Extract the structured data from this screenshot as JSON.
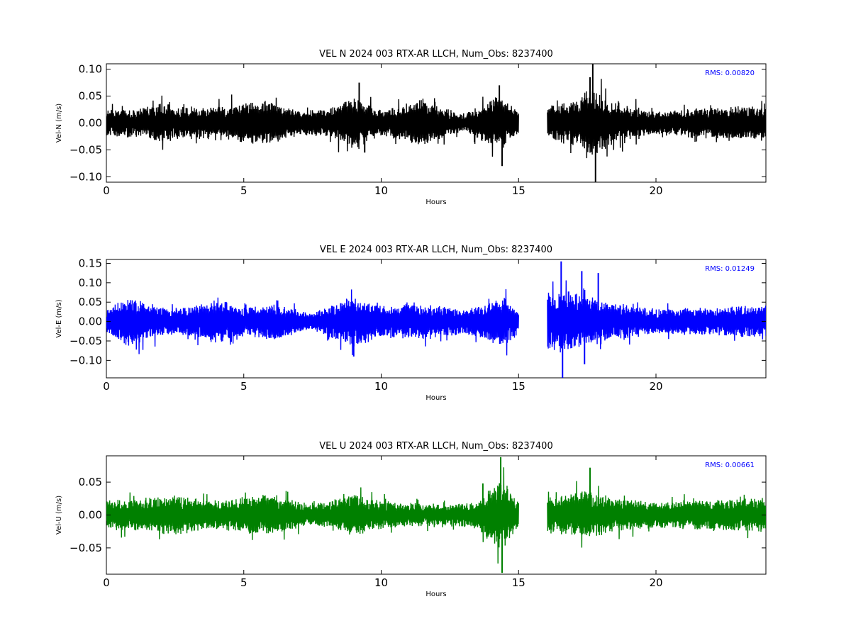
{
  "chart_data": [
    {
      "type": "line",
      "title": "VEL N 2024 003 RTX-AR  LLCH, Num_Obs: 8237400",
      "xlabel": "Hours",
      "ylabel": "Vel-N (m/s)",
      "xlim": [
        0,
        24
      ],
      "ylim": [
        -0.11,
        0.11
      ],
      "xticks": [
        0,
        5,
        10,
        15,
        20
      ],
      "xtick_labels": [
        "0",
        "5",
        "10",
        "15",
        "20"
      ],
      "yticks": [
        -0.1,
        -0.05,
        0.0,
        0.05,
        0.1
      ],
      "ytick_labels": [
        "−0.10",
        "−0.05",
        "0.00",
        "0.05",
        "0.10"
      ],
      "annotation": "RMS:  0.00820",
      "annotation_color": "#0000ff",
      "grid": false,
      "series": [
        {
          "color": "#000000",
          "segments": [
            [
              0,
              15.0
            ],
            [
              16.05,
              24
            ]
          ],
          "envelope_points": [
            {
              "x": 0,
              "y": 0.025
            },
            {
              "x": 1,
              "y": 0.025
            },
            {
              "x": 2,
              "y": 0.035
            },
            {
              "x": 3,
              "y": 0.028
            },
            {
              "x": 4,
              "y": 0.03
            },
            {
              "x": 5,
              "y": 0.035
            },
            {
              "x": 5.8,
              "y": 0.04
            },
            {
              "x": 7,
              "y": 0.022
            },
            {
              "x": 8,
              "y": 0.025
            },
            {
              "x": 9,
              "y": 0.045
            },
            {
              "x": 10,
              "y": 0.022
            },
            {
              "x": 11.5,
              "y": 0.04
            },
            {
              "x": 13,
              "y": 0.015
            },
            {
              "x": 14.3,
              "y": 0.05
            },
            {
              "x": 15,
              "y": 0.02
            },
            {
              "x": 16.05,
              "y": 0.03
            },
            {
              "x": 17,
              "y": 0.04
            },
            {
              "x": 17.6,
              "y": 0.065
            },
            {
              "x": 18.5,
              "y": 0.035
            },
            {
              "x": 20,
              "y": 0.02
            },
            {
              "x": 22,
              "y": 0.028
            },
            {
              "x": 24,
              "y": 0.03
            }
          ],
          "spikes": [
            {
              "x": 9.2,
              "y": 0.075
            },
            {
              "x": 9.4,
              "y": -0.055
            },
            {
              "x": 14.4,
              "y": -0.08
            },
            {
              "x": 14.3,
              "y": 0.07
            },
            {
              "x": 17.7,
              "y": 0.11
            },
            {
              "x": 17.8,
              "y": -0.11
            },
            {
              "x": 17.6,
              "y": 0.085
            }
          ]
        }
      ]
    },
    {
      "type": "line",
      "title": "VEL E 2024 003 RTX-AR  LLCH, Num_Obs: 8237400",
      "xlabel": "Hours",
      "ylabel": "Vel-E (m/s)",
      "xlim": [
        0,
        24
      ],
      "ylim": [
        -0.145,
        0.16
      ],
      "xticks": [
        0,
        5,
        10,
        15,
        20
      ],
      "xtick_labels": [
        "0",
        "5",
        "10",
        "15",
        "20"
      ],
      "yticks": [
        -0.1,
        -0.05,
        0.0,
        0.05,
        0.1,
        0.15
      ],
      "ytick_labels": [
        "−0.10",
        "−0.05",
        "0.00",
        "0.05",
        "0.10",
        "0.15"
      ],
      "annotation": "RMS:  0.01249",
      "annotation_color": "#0000ff",
      "grid": false,
      "series": [
        {
          "color": "#0000ff",
          "segments": [
            [
              0,
              15.0
            ],
            [
              16.05,
              24
            ]
          ],
          "envelope_points": [
            {
              "x": 0,
              "y": 0.03
            },
            {
              "x": 0.8,
              "y": 0.06
            },
            {
              "x": 2,
              "y": 0.035
            },
            {
              "x": 3,
              "y": 0.035
            },
            {
              "x": 4,
              "y": 0.055
            },
            {
              "x": 5,
              "y": 0.035
            },
            {
              "x": 6,
              "y": 0.045
            },
            {
              "x": 7.5,
              "y": 0.02
            },
            {
              "x": 9,
              "y": 0.065
            },
            {
              "x": 10,
              "y": 0.04
            },
            {
              "x": 11.5,
              "y": 0.045
            },
            {
              "x": 13,
              "y": 0.03
            },
            {
              "x": 14.5,
              "y": 0.06
            },
            {
              "x": 15,
              "y": 0.03
            },
            {
              "x": 16.05,
              "y": 0.08
            },
            {
              "x": 17,
              "y": 0.07
            },
            {
              "x": 18.5,
              "y": 0.045
            },
            {
              "x": 20,
              "y": 0.03
            },
            {
              "x": 22,
              "y": 0.035
            },
            {
              "x": 24,
              "y": 0.04
            }
          ],
          "spikes": [
            {
              "x": 16.55,
              "y": 0.155
            },
            {
              "x": 16.6,
              "y": -0.145
            },
            {
              "x": 17.3,
              "y": 0.13
            },
            {
              "x": 17.9,
              "y": 0.125
            },
            {
              "x": 17.4,
              "y": -0.11
            },
            {
              "x": 9.0,
              "y": -0.09
            }
          ]
        }
      ]
    },
    {
      "type": "line",
      "title": "VEL U 2024 003 RTX-AR  LLCH, Num_Obs: 8237400",
      "xlabel": "Hours",
      "ylabel": "Vel-U (m/s)",
      "xlim": [
        0,
        24
      ],
      "ylim": [
        -0.09,
        0.09
      ],
      "xticks": [
        0,
        5,
        10,
        15,
        20
      ],
      "xtick_labels": [
        "0",
        "5",
        "10",
        "15",
        "20"
      ],
      "yticks": [
        -0.05,
        0.0,
        0.05
      ],
      "ytick_labels": [
        "−0.05",
        "0.00",
        "0.05"
      ],
      "annotation": "RMS:  0.00661",
      "annotation_color": "#0000ff",
      "grid": false,
      "series": [
        {
          "color": "#008000",
          "segments": [
            [
              0,
              15.0
            ],
            [
              16.05,
              24
            ]
          ],
          "envelope_points": [
            {
              "x": 0,
              "y": 0.02
            },
            {
              "x": 1.5,
              "y": 0.025
            },
            {
              "x": 2.5,
              "y": 0.03
            },
            {
              "x": 4,
              "y": 0.02
            },
            {
              "x": 5.8,
              "y": 0.03
            },
            {
              "x": 7.5,
              "y": 0.015
            },
            {
              "x": 9,
              "y": 0.03
            },
            {
              "x": 10.5,
              "y": 0.018
            },
            {
              "x": 12.5,
              "y": 0.015
            },
            {
              "x": 13.5,
              "y": 0.02
            },
            {
              "x": 14.3,
              "y": 0.055
            },
            {
              "x": 15,
              "y": 0.02
            },
            {
              "x": 16.05,
              "y": 0.025
            },
            {
              "x": 17.5,
              "y": 0.035
            },
            {
              "x": 18.5,
              "y": 0.025
            },
            {
              "x": 20,
              "y": 0.018
            },
            {
              "x": 22,
              "y": 0.022
            },
            {
              "x": 24,
              "y": 0.025
            }
          ],
          "spikes": [
            {
              "x": 14.35,
              "y": 0.088
            },
            {
              "x": 14.4,
              "y": -0.088
            },
            {
              "x": 17.6,
              "y": 0.072
            },
            {
              "x": 13.7,
              "y": 0.048
            }
          ]
        }
      ]
    }
  ]
}
